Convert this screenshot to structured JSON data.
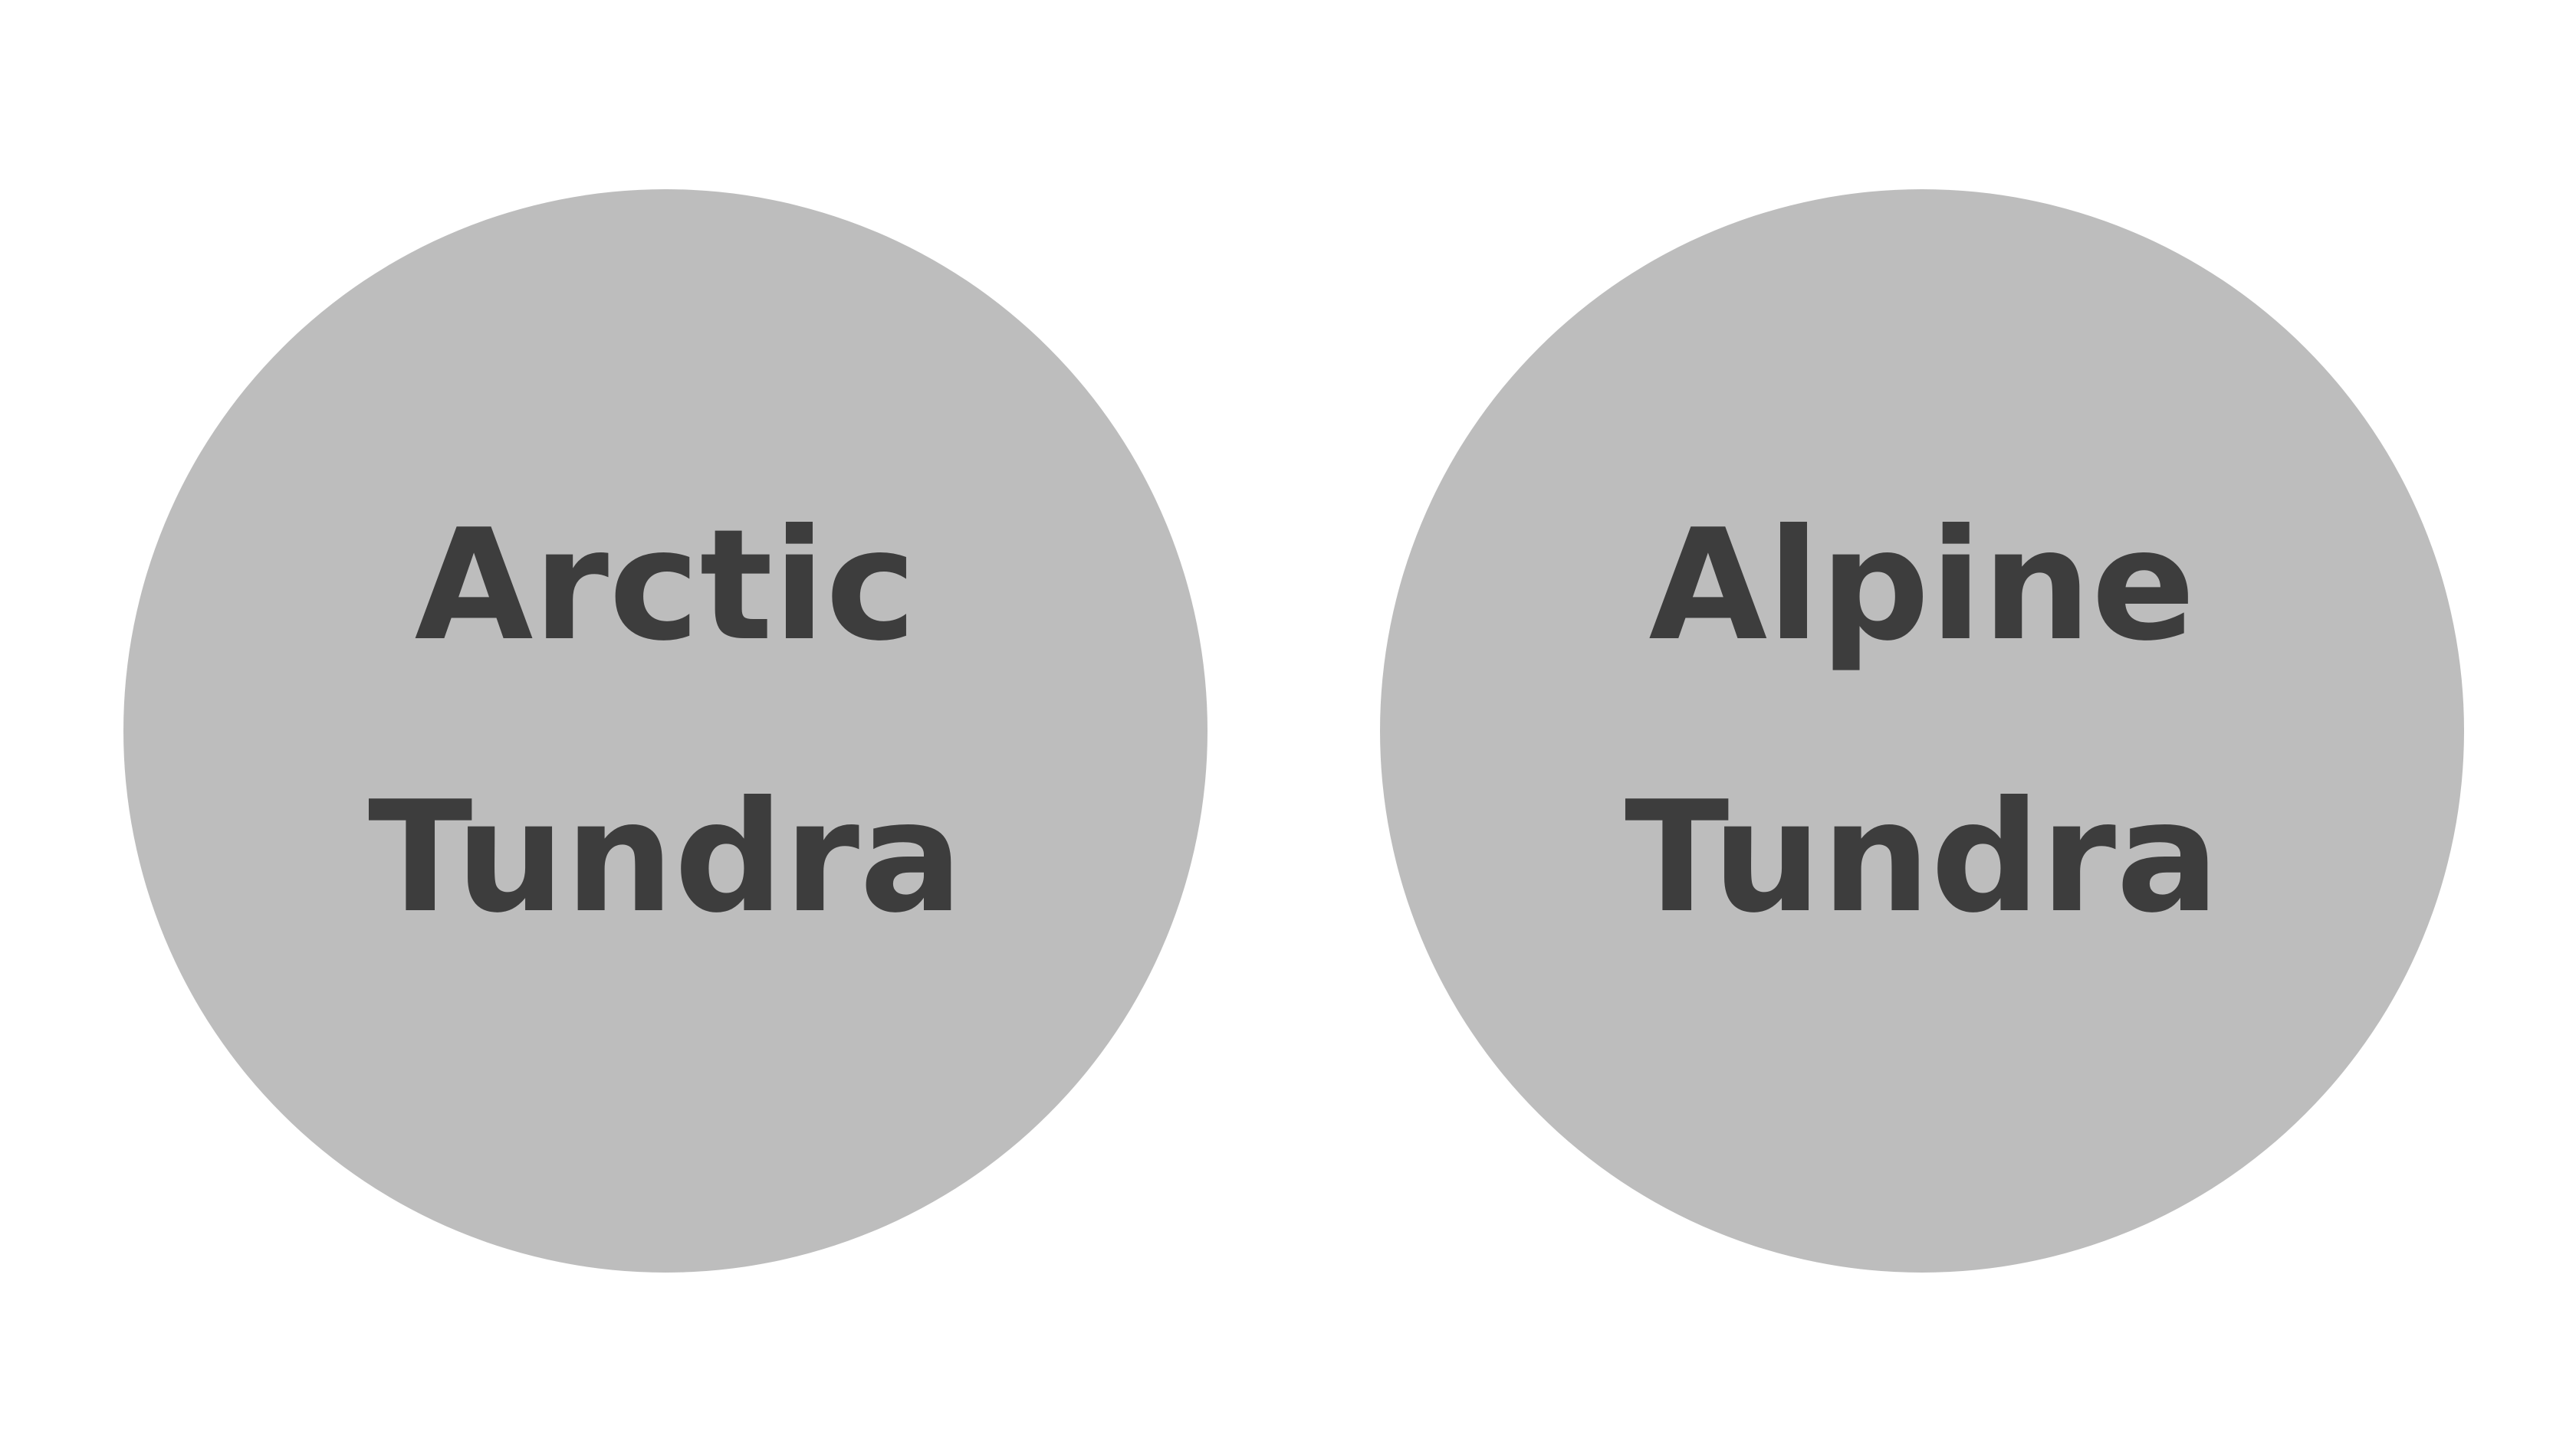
{
  "diagram": {
    "circles": [
      {
        "line1": "Arctic",
        "line2": "Tundra"
      },
      {
        "line1": "Alpine",
        "line2": "Tundra"
      }
    ]
  },
  "colors": {
    "background": "#ffffff",
    "circle_fill": "#bdbdbd",
    "text": "#3d3d3d"
  }
}
